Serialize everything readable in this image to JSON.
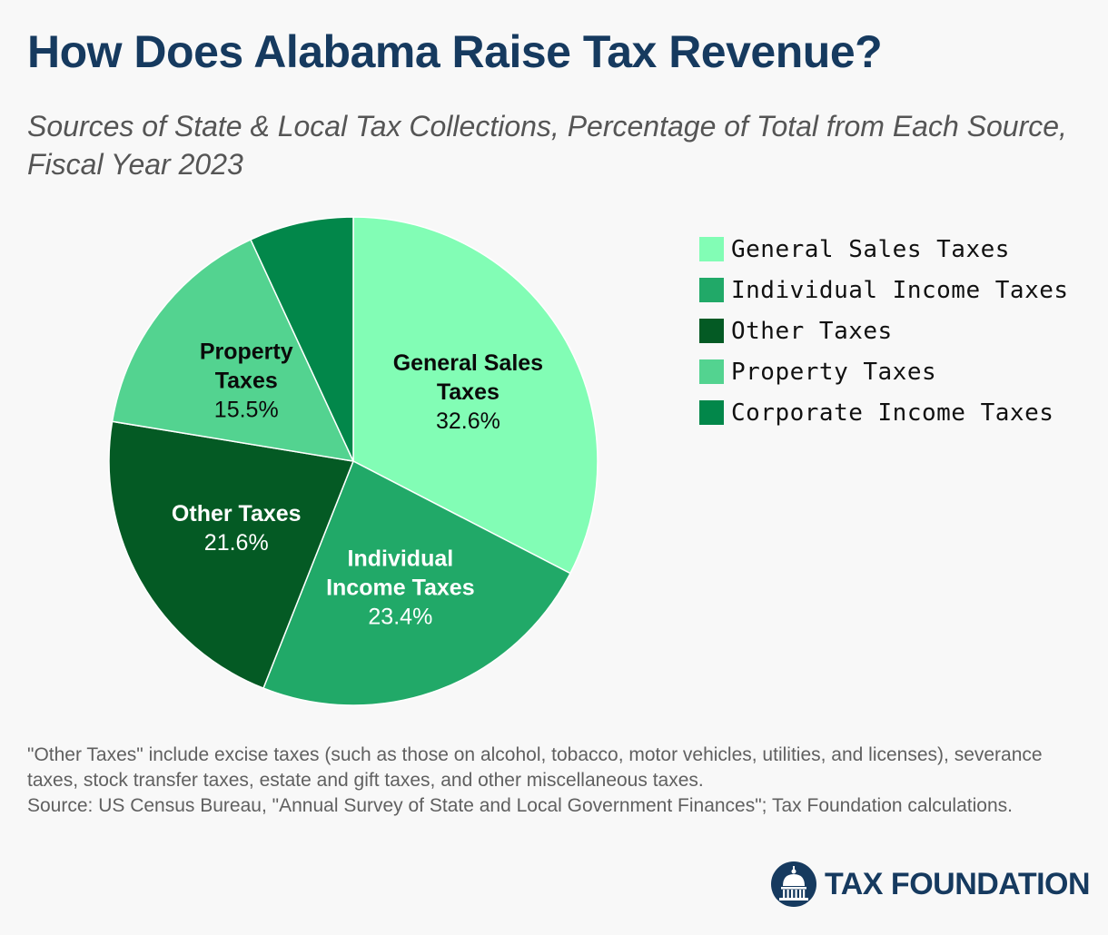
{
  "title": "How Does Alabama Raise Tax Revenue?",
  "subtitle": "Sources of State & Local Tax Collections, Percentage of Total from Each Source, Fiscal Year 2023",
  "chart_data": {
    "type": "pie",
    "title": "How Does Alabama Raise Tax Revenue?",
    "subtitle": "Sources of State & Local Tax Collections, Percentage of Total from Each Source, Fiscal Year 2023",
    "legend_position": "right",
    "slices": [
      {
        "name": "General Sales Taxes",
        "label_lines": [
          "General Sales",
          "Taxes"
        ],
        "value": 32.6,
        "value_label": "32.6%",
        "color": "#82fdb5",
        "text_color": "#0a0a0a",
        "show_label": true
      },
      {
        "name": "Individual Income Taxes",
        "label_lines": [
          "Individual",
          "Income Taxes"
        ],
        "value": 23.4,
        "value_label": "23.4%",
        "color": "#21a968",
        "text_color": "#ffffff",
        "show_label": true
      },
      {
        "name": "Other Taxes",
        "label_lines": [
          "Other Taxes"
        ],
        "value": 21.6,
        "value_label": "21.6%",
        "color": "#045a24",
        "text_color": "#ffffff",
        "show_label": true
      },
      {
        "name": "Property Taxes",
        "label_lines": [
          "Property",
          "Taxes"
        ],
        "value": 15.5,
        "value_label": "15.5%",
        "color": "#53d390",
        "text_color": "#0a0a0a",
        "show_label": true
      },
      {
        "name": "Corporate Income Taxes",
        "label_lines": [],
        "value": 6.9,
        "value_label": "",
        "color": "#02874a",
        "text_color": "#ffffff",
        "show_label": false
      }
    ]
  },
  "notes": {
    "other_taxes_note": "\"Other Taxes\" include excise taxes (such as those on alcohol, tobacco, motor vehicles, utilities, and licenses), severance taxes, stock transfer taxes, estate and gift taxes, and other miscellaneous taxes.",
    "source": "Source: US Census Bureau, \"Annual Survey of State and Local Government Finances\"; Tax Foundation calculations."
  },
  "logo": {
    "text": "TAX FOUNDATION",
    "icon": "capitol-dome-icon",
    "color": "#163a5f"
  }
}
